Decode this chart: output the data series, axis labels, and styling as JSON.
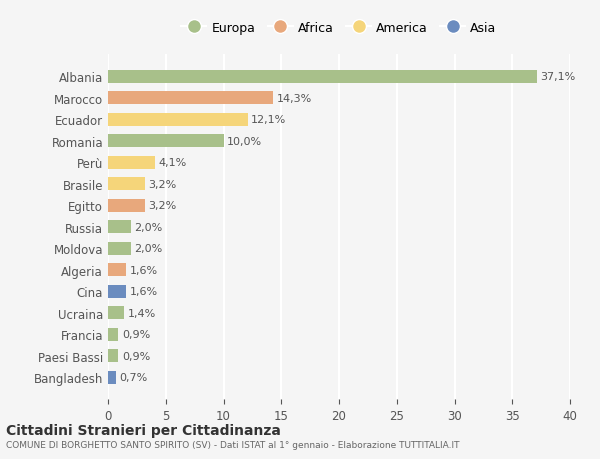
{
  "countries": [
    "Albania",
    "Marocco",
    "Ecuador",
    "Romania",
    "Perù",
    "Brasile",
    "Egitto",
    "Russia",
    "Moldova",
    "Algeria",
    "Cina",
    "Ucraina",
    "Francia",
    "Paesi Bassi",
    "Bangladesh"
  ],
  "values": [
    37.1,
    14.3,
    12.1,
    10.0,
    4.1,
    3.2,
    3.2,
    2.0,
    2.0,
    1.6,
    1.6,
    1.4,
    0.9,
    0.9,
    0.7
  ],
  "labels": [
    "37,1%",
    "14,3%",
    "12,1%",
    "10,0%",
    "4,1%",
    "3,2%",
    "3,2%",
    "2,0%",
    "2,0%",
    "1,6%",
    "1,6%",
    "1,4%",
    "0,9%",
    "0,9%",
    "0,7%"
  ],
  "continents": [
    "Europa",
    "Africa",
    "America",
    "Europa",
    "America",
    "America",
    "Africa",
    "Europa",
    "Europa",
    "Africa",
    "Asia",
    "Europa",
    "Europa",
    "Europa",
    "Asia"
  ],
  "colors": {
    "Europa": "#a8c08a",
    "Africa": "#e8a87c",
    "America": "#f5d57a",
    "Asia": "#6b8cbf"
  },
  "xlim": [
    0,
    40
  ],
  "title": "Cittadini Stranieri per Cittadinanza",
  "subtitle": "COMUNE DI BORGHETTO SANTO SPIRITO (SV) - Dati ISTAT al 1° gennaio - Elaborazione TUTTITALIA.IT",
  "background_color": "#f5f5f5",
  "grid_color": "#ffffff",
  "bar_height": 0.6,
  "xticks": [
    0,
    5,
    10,
    15,
    20,
    25,
    30,
    35,
    40
  ],
  "legend_order": [
    "Europa",
    "Africa",
    "America",
    "Asia"
  ]
}
